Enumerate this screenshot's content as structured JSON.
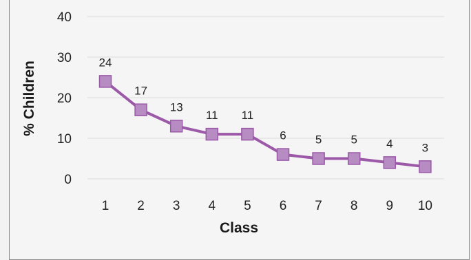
{
  "chart_data": {
    "type": "line",
    "title": "",
    "xlabel": "Class",
    "ylabel": "% Children",
    "categories": [
      "1",
      "2",
      "3",
      "4",
      "5",
      "6",
      "7",
      "8",
      "9",
      "10"
    ],
    "series": [
      {
        "values": [
          24,
          17,
          13,
          11,
          11,
          6,
          5,
          5,
          4,
          3
        ],
        "data_labels": [
          "24",
          "17",
          "13",
          "11",
          "11",
          "6",
          "5",
          "5",
          "4",
          "3"
        ],
        "color": "#9b59a8",
        "marker_color": "#b68cc2",
        "marker": "square"
      }
    ],
    "ylim": [
      0,
      40
    ],
    "yticks": [
      "0",
      "10",
      "20",
      "30",
      "40"
    ],
    "grid": true,
    "legend": "none"
  },
  "colors": {
    "background": "#f5f5f5",
    "gridline": "#dcdcdc",
    "series": "#9b59a8",
    "marker": "#b68cc2",
    "text": "#222222"
  }
}
